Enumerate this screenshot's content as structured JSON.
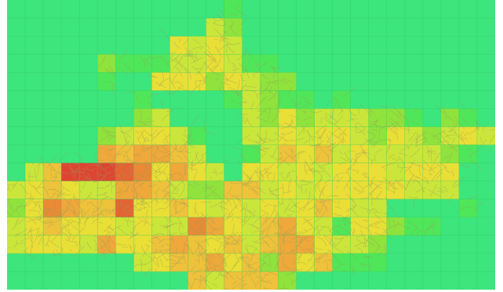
{
  "map": {
    "base_color": "#3de57d",
    "rows": 16,
    "cols": 27,
    "palette": {
      "0": "#3de57d",
      "1": "#4fe65a",
      "2": "#8fe33c",
      "3": "#cbe63a",
      "4": "#e9df36",
      "5": "#eec23a",
      "6": "#efa83a",
      "7": "#ea8a35",
      "8": "#e56332",
      "9": "#df4432"
    },
    "density_grid": [
      "000000000000100000000000000",
      "000000000003200000000000000",
      "000000000434300000000000000",
      "000002111334311000000000000",
      "000001004442432200000000000",
      "000000010000132110100000000",
      "000000023000032423332210210",
      "000002344310033434432432343",
      "000006566530013545343333210",
      "035999874643044343444344400",
      "345433665322553434444433300",
      "247655844543434345433000010",
      "345444343376435643144211000",
      "344436445654535664332000000",
      "000000034556452645111000000",
      "000000000053555200000000000"
    ],
    "street_color": "#9a9a55"
  }
}
